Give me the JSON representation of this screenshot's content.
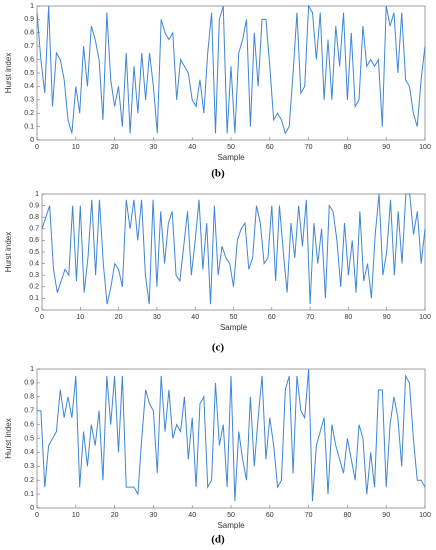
{
  "chart_data": [
    {
      "type": "line",
      "caption": "(b)",
      "x_label": "Sample",
      "y_label": "Hurst index",
      "xlim": [
        0,
        100
      ],
      "ylim": [
        0,
        1
      ],
      "xticks": [
        0,
        10,
        20,
        30,
        40,
        50,
        60,
        70,
        80,
        90,
        100
      ],
      "yticks": [
        0,
        0.1,
        0.2,
        0.3,
        0.4,
        0.5,
        0.6,
        0.7,
        0.8,
        0.9,
        1
      ],
      "x": [
        0,
        1,
        2,
        3,
        4,
        5,
        6,
        7,
        8,
        9,
        10,
        11,
        12,
        13,
        14,
        15,
        16,
        17,
        18,
        19,
        20,
        21,
        22,
        23,
        24,
        25,
        26,
        27,
        28,
        29,
        30,
        31,
        32,
        33,
        34,
        35,
        36,
        37,
        38,
        39,
        40,
        41,
        42,
        43,
        44,
        45,
        46,
        47,
        48,
        49,
        50,
        51,
        52,
        53,
        54,
        55,
        56,
        57,
        58,
        59,
        60,
        61,
        62,
        63,
        64,
        65,
        66,
        67,
        68,
        69,
        70,
        71,
        72,
        73,
        74,
        75,
        76,
        77,
        78,
        79,
        80,
        81,
        82,
        83,
        84,
        85,
        86,
        87,
        88,
        89,
        90,
        91,
        92,
        93,
        94,
        95,
        96,
        97,
        98,
        99,
        100
      ],
      "series": [
        {
          "color": "#3f86d6",
          "values": [
            0.95,
            0.6,
            0.35,
            1,
            0.25,
            0.65,
            0.6,
            0.45,
            0.15,
            0.05,
            0.4,
            0.2,
            0.7,
            0.4,
            0.85,
            0.75,
            0.6,
            0.15,
            0.95,
            0.45,
            0.25,
            0.4,
            0.1,
            0.65,
            0.05,
            0.55,
            0.2,
            0.65,
            0.3,
            0.65,
            0.4,
            0.05,
            0.9,
            0.8,
            0.75,
            0.8,
            0.3,
            0.6,
            0.55,
            0.5,
            0.3,
            0.25,
            0.45,
            0.2,
            0.65,
            0.95,
            0.05,
            0.9,
            1,
            0.05,
            0.55,
            0.05,
            0.65,
            0.75,
            0.9,
            0.1,
            0.8,
            0.4,
            0.9,
            0.9,
            0.55,
            0.15,
            0.2,
            0.15,
            0.05,
            0.1,
            0.5,
            0.95,
            0.35,
            0.4,
            1,
            0.95,
            0.6,
            0.95,
            0.3,
            0.75,
            0.3,
            0.85,
            0.55,
            0.95,
            0.3,
            0.8,
            0.25,
            0.3,
            0.85,
            0.55,
            0.6,
            0.55,
            0.6,
            0.1,
            1,
            0.85,
            0.95,
            0.5,
            0.95,
            0.45,
            0.4,
            0.2,
            0.1,
            0.45,
            0.7
          ]
        }
      ]
    },
    {
      "type": "line",
      "caption": "(c)",
      "x_label": "Sample",
      "y_label": "Hurst index",
      "xlim": [
        0,
        100
      ],
      "ylim": [
        0,
        1
      ],
      "xticks": [
        0,
        10,
        20,
        30,
        40,
        50,
        60,
        70,
        80,
        90,
        100
      ],
      "yticks": [
        0,
        0.1,
        0.2,
        0.3,
        0.4,
        0.5,
        0.6,
        0.7,
        0.8,
        0.9,
        1
      ],
      "x": [
        0,
        1,
        2,
        3,
        4,
        5,
        6,
        7,
        8,
        9,
        10,
        11,
        12,
        13,
        14,
        15,
        16,
        17,
        18,
        19,
        20,
        21,
        22,
        23,
        24,
        25,
        26,
        27,
        28,
        29,
        30,
        31,
        32,
        33,
        34,
        35,
        36,
        37,
        38,
        39,
        40,
        41,
        42,
        43,
        44,
        45,
        46,
        47,
        48,
        49,
        50,
        51,
        52,
        53,
        54,
        55,
        56,
        57,
        58,
        59,
        60,
        61,
        62,
        63,
        64,
        65,
        66,
        67,
        68,
        69,
        70,
        71,
        72,
        73,
        74,
        75,
        76,
        77,
        78,
        79,
        80,
        81,
        82,
        83,
        84,
        85,
        86,
        87,
        88,
        89,
        90,
        91,
        92,
        93,
        94,
        95,
        96,
        97,
        98,
        99,
        100
      ],
      "series": [
        {
          "color": "#3f86d6",
          "values": [
            0.7,
            0.8,
            0.9,
            0.35,
            0.15,
            0.25,
            0.35,
            0.3,
            0.9,
            0.25,
            0.9,
            0.15,
            0.45,
            0.95,
            0.3,
            0.95,
            0.4,
            0.05,
            0.2,
            0.4,
            0.35,
            0.2,
            0.95,
            0.7,
            0.95,
            0.6,
            0.95,
            0.3,
            0.05,
            0.95,
            0.2,
            0.85,
            0.4,
            0.75,
            0.85,
            0.3,
            0.25,
            0.55,
            0.85,
            0.3,
            0.6,
            0.95,
            0.35,
            0.75,
            0.05,
            0.9,
            0.3,
            0.55,
            0.45,
            0.4,
            0.2,
            0.6,
            0.7,
            0.75,
            0.35,
            0.45,
            0.9,
            0.75,
            0.4,
            0.45,
            0.9,
            0.25,
            0.9,
            0.5,
            0.15,
            0.75,
            0.45,
            0.9,
            0.55,
            0.95,
            0.05,
            0.75,
            0.4,
            0.7,
            0.1,
            0.9,
            0.85,
            0.6,
            0.2,
            0.75,
            0.3,
            0.6,
            0.15,
            0.85,
            0.25,
            0.4,
            0.1,
            0.65,
            1,
            0.3,
            0.5,
            0.95,
            0.3,
            0.85,
            0.4,
            1,
            1,
            0.65,
            0.85,
            0.4,
            0.7
          ]
        }
      ]
    },
    {
      "type": "line",
      "caption": "(d)",
      "x_label": "Sample",
      "y_label": "Hurst index",
      "xlim": [
        0,
        100
      ],
      "ylim": [
        0,
        1
      ],
      "xticks": [
        0,
        10,
        20,
        30,
        40,
        50,
        60,
        70,
        80,
        90,
        100
      ],
      "yticks": [
        0,
        0.1,
        0.2,
        0.3,
        0.4,
        0.5,
        0.6,
        0.7,
        0.8,
        0.9,
        1
      ],
      "x": [
        0,
        1,
        2,
        3,
        4,
        5,
        6,
        7,
        8,
        9,
        10,
        11,
        12,
        13,
        14,
        15,
        16,
        17,
        18,
        19,
        20,
        21,
        22,
        23,
        24,
        25,
        26,
        27,
        28,
        29,
        30,
        31,
        32,
        33,
        34,
        35,
        36,
        37,
        38,
        39,
        40,
        41,
        42,
        43,
        44,
        45,
        46,
        47,
        48,
        49,
        50,
        51,
        52,
        53,
        54,
        55,
        56,
        57,
        58,
        59,
        60,
        61,
        62,
        63,
        64,
        65,
        66,
        67,
        68,
        69,
        70,
        71,
        72,
        73,
        74,
        75,
        76,
        77,
        78,
        79,
        80,
        81,
        82,
        83,
        84,
        85,
        86,
        87,
        88,
        89,
        90,
        91,
        92,
        93,
        94,
        95,
        96,
        97,
        98,
        99,
        100
      ],
      "series": [
        {
          "color": "#3f86d6",
          "values": [
            0.7,
            0.7,
            0.15,
            0.45,
            0.5,
            0.55,
            0.85,
            0.65,
            0.8,
            0.65,
            0.95,
            0.15,
            0.55,
            0.3,
            0.6,
            0.45,
            0.7,
            0.2,
            0.95,
            0.6,
            0.95,
            0.4,
            0.95,
            0.15,
            0.15,
            0.15,
            0.1,
            0.5,
            0.85,
            0.75,
            0.7,
            0.25,
            0.95,
            0.55,
            0.85,
            0.5,
            0.6,
            0.55,
            0.8,
            0.35,
            0.65,
            0.15,
            0.75,
            0.8,
            0.15,
            0.2,
            0.9,
            0.45,
            0.6,
            0.15,
            0.95,
            0.05,
            0.55,
            0.35,
            0.2,
            0.8,
            0.3,
            0.65,
            0.95,
            0.35,
            0.65,
            0.45,
            0.15,
            0.2,
            0.85,
            0.95,
            0.25,
            0.95,
            0.7,
            0.65,
            1,
            0.05,
            0.45,
            0.55,
            0.65,
            0.1,
            0.6,
            0.45,
            0.35,
            0.25,
            0.5,
            0.35,
            0.2,
            0.6,
            0.5,
            0.1,
            0.4,
            0.15,
            0.85,
            0.85,
            0.15,
            0.6,
            0.8,
            0.65,
            0.3,
            0.95,
            0.9,
            0.5,
            0.2,
            0.2,
            0.15
          ]
        }
      ]
    }
  ]
}
